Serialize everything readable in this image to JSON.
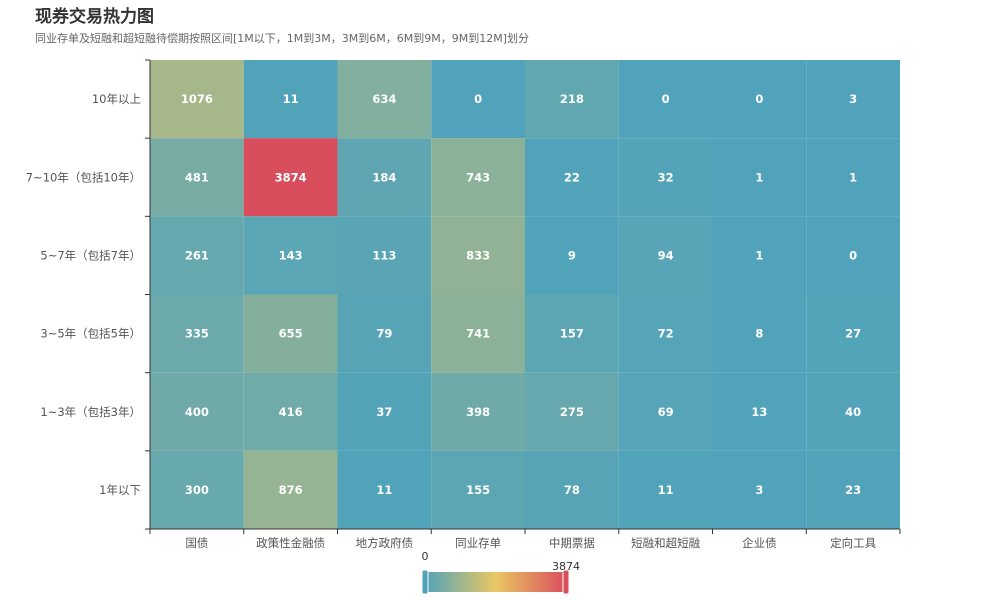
{
  "title": "现券交易热力图",
  "subtitle": "同业存单及短融和超短融待偿期按照区间[1M以下，1M到3M，3M到6M，6M到9M，9M到12M]划分",
  "chart_data": {
    "type": "heatmap",
    "x_categories": [
      "国债",
      "政策性金融债",
      "地方政府债",
      "同业存单",
      "中期票据",
      "短融和超短融",
      "企业债",
      "定向工具"
    ],
    "y_categories": [
      "10年以上",
      "7~10年（包括10年）",
      "5~7年（包括7年）",
      "3~5年（包括5年）",
      "1~3年（包括3年）",
      "1年以下"
    ],
    "values": [
      [
        1076,
        11,
        634,
        0,
        218,
        0,
        0,
        3
      ],
      [
        481,
        3874,
        184,
        743,
        22,
        32,
        1,
        1
      ],
      [
        261,
        143,
        113,
        833,
        9,
        94,
        1,
        0
      ],
      [
        335,
        655,
        79,
        741,
        157,
        72,
        8,
        27
      ],
      [
        400,
        416,
        37,
        398,
        275,
        69,
        13,
        40
      ],
      [
        300,
        876,
        11,
        155,
        78,
        11,
        3,
        23
      ]
    ],
    "visual_map": {
      "min": 0,
      "max": 3874,
      "min_label": "0",
      "max_label": "3874",
      "colors": [
        "#50a3ba",
        "#eac763",
        "#d94e5d"
      ]
    }
  }
}
